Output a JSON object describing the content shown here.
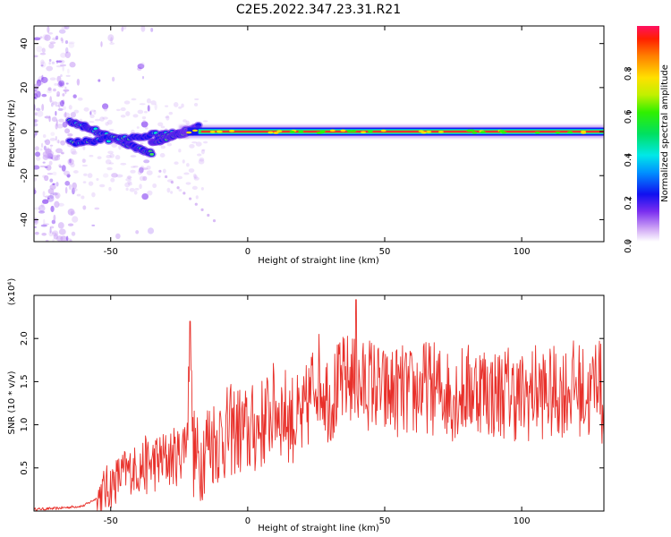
{
  "title": "C2E5.2022.347.23.31.R21",
  "chart_data": [
    {
      "type": "heatmap",
      "xlabel": "Height of straight line (km)",
      "ylabel": "Frequency (Hz)",
      "xlim": [
        -78,
        130
      ],
      "ylim": [
        -50,
        48
      ],
      "xticks": [
        -50,
        0,
        50,
        100
      ],
      "yticks": [
        -40,
        -20,
        0,
        20,
        40
      ],
      "colorbar": {
        "label": "Normalized spectral amplitude",
        "range": [
          0.0,
          1.0
        ],
        "ticks": [
          0.0,
          0.2,
          0.4,
          0.6,
          0.8
        ]
      },
      "features": [
        {
          "description_x_range": [
            -78,
            -65
          ],
          "frequency_spread": [
            -50,
            48
          ],
          "amplitude": 0.05
        },
        {
          "description_x_range": [
            -65,
            -20
          ],
          "frequency_branches": [
            [
              5,
              -10
            ],
            [
              -5,
              0
            ]
          ],
          "amplitude": 0.35
        },
        {
          "description_x_range": [
            -20,
            130
          ],
          "frequency": 0,
          "amplitude": 0.95
        }
      ]
    },
    {
      "type": "line",
      "xlabel": "Height of straight line (km)",
      "ylabel": "SNR (10 * v/v)",
      "yscale_label": "(x10⁴)",
      "xlim": [
        -78,
        130
      ],
      "ylim": [
        0,
        2.5
      ],
      "xticks": [
        -50,
        0,
        50,
        100
      ],
      "yticks": [
        0.5,
        1.0,
        1.5,
        2.0
      ],
      "color": "#e8302a",
      "series": [
        {
          "x": [
            -78,
            -70,
            -60,
            -55,
            -50,
            -45,
            -40,
            -35,
            -30,
            -25,
            -22,
            -21,
            -20,
            -18,
            -15,
            -10,
            -5,
            0,
            5,
            10,
            15,
            20,
            25,
            30,
            35,
            38,
            40,
            45,
            50,
            55,
            60,
            65,
            70,
            75,
            80,
            85,
            90,
            95,
            100,
            105,
            110,
            115,
            120,
            125,
            128,
            130
          ],
          "values": [
            0.02,
            0.03,
            0.06,
            0.15,
            0.3,
            0.45,
            0.5,
            0.55,
            0.6,
            0.65,
            0.9,
            2.2,
            0.7,
            0.55,
            0.8,
            0.85,
            0.95,
            0.9,
            1.0,
            1.2,
            1.1,
            1.0,
            1.6,
            1.3,
            1.5,
            1.55,
            1.4,
            1.5,
            1.35,
            1.4,
            1.35,
            1.45,
            1.4,
            1.35,
            1.4,
            1.45,
            1.35,
            1.4,
            1.3,
            1.4,
            1.35,
            1.4,
            1.45,
            1.3,
            1.7,
            1.0
          ]
        }
      ]
    }
  ]
}
